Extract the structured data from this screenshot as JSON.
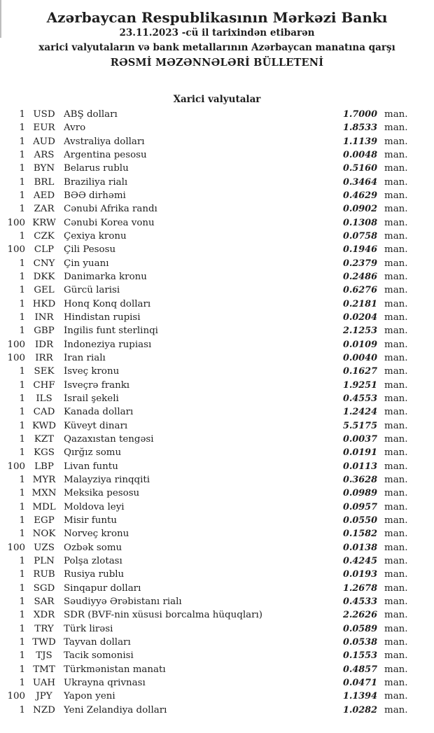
{
  "page": {
    "header": {
      "bank_name": "Azərbaycan Respublikasının Mərkəzi Bankı",
      "effective_date_line": "23.11.2023 -cü il tarixindən etibarən",
      "scope_line": "xarici valyutaların və bank metallarının Azərbaycan manatına qarşı",
      "bulletin_title": "RƏSMİ MƏZƏNNƏLƏRİ BÜLLETENİ"
    },
    "section_title": "Xarici valyutalar",
    "unit_label": "man.",
    "text_color": "#1e1e1e",
    "background_color": "#ffffff"
  },
  "rates": [
    {
      "qty": "1",
      "code": "USD",
      "name": "ABŞ dolları",
      "rate": "1.7000"
    },
    {
      "qty": "1",
      "code": "EUR",
      "name": "Avro",
      "rate": "1.8533"
    },
    {
      "qty": "1",
      "code": "AUD",
      "name": "Avstraliya dolları",
      "rate": "1.1139"
    },
    {
      "qty": "1",
      "code": "ARS",
      "name": "Argentina pesosu",
      "rate": "0.0048"
    },
    {
      "qty": "1",
      "code": "BYN",
      "name": "Belarus rublu",
      "rate": "0.5160"
    },
    {
      "qty": "1",
      "code": "BRL",
      "name": "Braziliya rialı",
      "rate": "0.3464"
    },
    {
      "qty": "1",
      "code": "AED",
      "name": "BƏƏ dirhəmi",
      "rate": "0.4629"
    },
    {
      "qty": "1",
      "code": "ZAR",
      "name": "Cənubi Afrika randı",
      "rate": "0.0902"
    },
    {
      "qty": "100",
      "code": "KRW",
      "name": "Cənubi Korea vonu",
      "rate": "0.1308"
    },
    {
      "qty": "1",
      "code": "CZK",
      "name": "Çexiya kronu",
      "rate": "0.0758"
    },
    {
      "qty": "100",
      "code": "CLP",
      "name": "Çili Pesosu",
      "rate": "0.1946"
    },
    {
      "qty": "1",
      "code": "CNY",
      "name": "Çin yuanı",
      "rate": "0.2379"
    },
    {
      "qty": "1",
      "code": "DKK",
      "name": "Danimarka kronu",
      "rate": "0.2486"
    },
    {
      "qty": "1",
      "code": "GEL",
      "name": "Gürcü larisi",
      "rate": "0.6276"
    },
    {
      "qty": "1",
      "code": "HKD",
      "name": "Honq Konq dolları",
      "rate": "0.2181"
    },
    {
      "qty": "1",
      "code": "INR",
      "name": "Hindistan rupisi",
      "rate": "0.0204"
    },
    {
      "qty": "1",
      "code": "GBP",
      "name": "İngilis funt sterlinqi",
      "rate": "2.1253"
    },
    {
      "qty": "100",
      "code": "IDR",
      "name": "İndoneziya rupiası",
      "rate": "0.0109"
    },
    {
      "qty": "100",
      "code": "IRR",
      "name": "İran rialı",
      "rate": "0.0040"
    },
    {
      "qty": "1",
      "code": "SEK",
      "name": "İsveç kronu",
      "rate": "0.1627"
    },
    {
      "qty": "1",
      "code": "CHF",
      "name": "İsveçrə frankı",
      "rate": "1.9251"
    },
    {
      "qty": "1",
      "code": "ILS",
      "name": "İsrail şekeli",
      "rate": "0.4553"
    },
    {
      "qty": "1",
      "code": "CAD",
      "name": "Kanada dolları",
      "rate": "1.2424"
    },
    {
      "qty": "1",
      "code": "KWD",
      "name": "Küveyt dinarı",
      "rate": "5.5175"
    },
    {
      "qty": "1",
      "code": "KZT",
      "name": "Qazaxıstan tengəsi",
      "rate": "0.0037"
    },
    {
      "qty": "1",
      "code": "KGS",
      "name": "Qırğız somu",
      "rate": "0.0191"
    },
    {
      "qty": "100",
      "code": "LBP",
      "name": "Livan funtu",
      "rate": "0.0113"
    },
    {
      "qty": "1",
      "code": "MYR",
      "name": "Malayziya rinqqiti",
      "rate": "0.3628"
    },
    {
      "qty": "1",
      "code": "MXN",
      "name": "Meksika pesosu",
      "rate": "0.0989"
    },
    {
      "qty": "1",
      "code": "MDL",
      "name": "Moldova leyi",
      "rate": "0.0957"
    },
    {
      "qty": "1",
      "code": "EGP",
      "name": "Misir funtu",
      "rate": "0.0550"
    },
    {
      "qty": "1",
      "code": "NOK",
      "name": "Norveç kronu",
      "rate": "0.1582"
    },
    {
      "qty": "100",
      "code": "UZS",
      "name": "Özbək somu",
      "rate": "0.0138"
    },
    {
      "qty": "1",
      "code": "PLN",
      "name": "Polşa zlotası",
      "rate": "0.4245"
    },
    {
      "qty": "1",
      "code": "RUB",
      "name": "Rusiya rublu",
      "rate": "0.0193"
    },
    {
      "qty": "1",
      "code": "SGD",
      "name": "Sinqapur dolları",
      "rate": "1.2678"
    },
    {
      "qty": "1",
      "code": "SAR",
      "name": "Səudiyyə Ərəbistanı rialı",
      "rate": "0.4533"
    },
    {
      "qty": "1",
      "code": "XDR",
      "name": "SDR (BVF-nin xüsusi borcalma hüquqları)",
      "rate": "2.2626"
    },
    {
      "qty": "1",
      "code": "TRY",
      "name": "Türk lirəsi",
      "rate": "0.0589"
    },
    {
      "qty": "1",
      "code": "TWD",
      "name": "Tayvan dolları",
      "rate": "0.0538"
    },
    {
      "qty": "1",
      "code": "TJS",
      "name": "Tacik somonisi",
      "rate": "0.1553"
    },
    {
      "qty": "1",
      "code": "TMT",
      "name": "Türkmənistan manatı",
      "rate": "0.4857"
    },
    {
      "qty": "1",
      "code": "UAH",
      "name": "Ukrayna qrivnası",
      "rate": "0.0471"
    },
    {
      "qty": "100",
      "code": "JPY",
      "name": "Yapon yeni",
      "rate": "1.1394"
    },
    {
      "qty": "1",
      "code": "NZD",
      "name": "Yeni Zelandiya dolları",
      "rate": "1.0282"
    }
  ]
}
